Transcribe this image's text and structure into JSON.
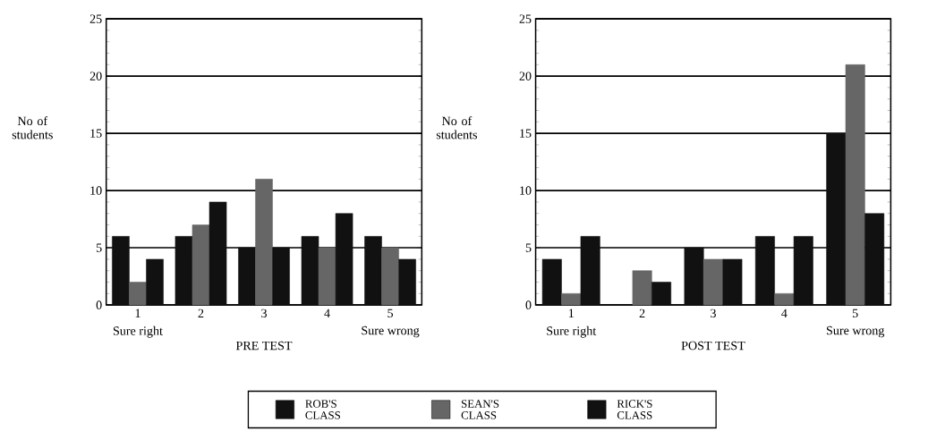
{
  "chart_data": [
    {
      "type": "bar",
      "xlabel": "PRE TEST",
      "ylabel": "No of students",
      "categories": [
        "1",
        "2",
        "3",
        "4",
        "5"
      ],
      "annotations": [
        "Sure right",
        "Sure wrong"
      ],
      "series": [
        {
          "name": "ROB'S CLASS",
          "color": "#111111",
          "values": [
            6,
            6,
            5,
            6,
            6
          ]
        },
        {
          "name": "SEAN'S CLASS",
          "color": "#666666",
          "values": [
            2,
            7,
            11,
            5,
            5
          ]
        },
        {
          "name": "RICK'S CLASS",
          "color": "#111111",
          "values": [
            4,
            9,
            5,
            8,
            4
          ]
        }
      ],
      "ylim": [
        0,
        25
      ],
      "yticks": [
        0,
        5,
        10,
        15,
        20,
        25
      ],
      "grid": "y",
      "legend": "bottom"
    },
    {
      "type": "bar",
      "xlabel": "POST TEST",
      "ylabel": "No of students",
      "categories": [
        "1",
        "2",
        "3",
        "4",
        "5"
      ],
      "annotations": [
        "Sure right",
        "Sure wrong"
      ],
      "series": [
        {
          "color": "#111111",
          "values": [
            4,
            0,
            5,
            6,
            15
          ]
        },
        {
          "color": "#666666",
          "values": [
            1,
            3,
            4,
            1,
            21
          ]
        },
        {
          "color": "#111111",
          "values": [
            6,
            2,
            4,
            6,
            8
          ]
        }
      ],
      "ylim": [
        0,
        25
      ],
      "yticks": [
        0,
        5,
        10,
        15,
        20,
        25
      ],
      "grid": "y"
    }
  ]
}
